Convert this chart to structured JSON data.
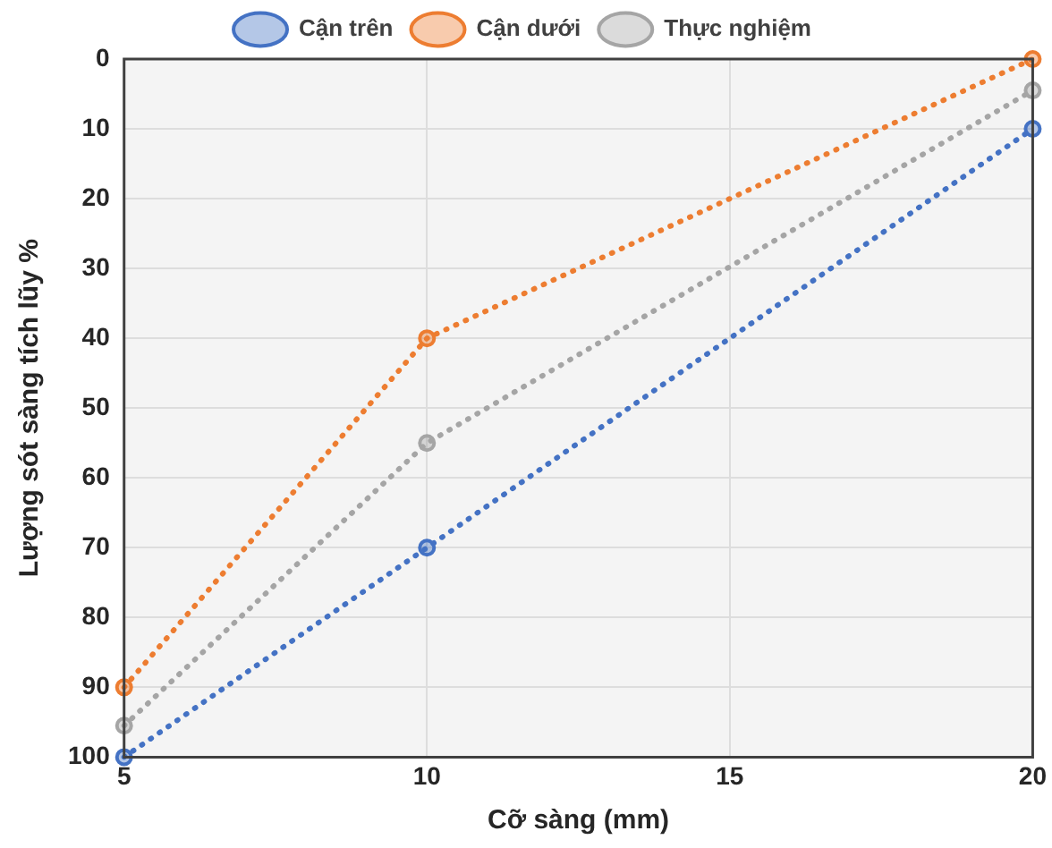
{
  "chart_data": {
    "type": "line",
    "xlabel": "Cỡ sàng (mm)",
    "ylabel": "Lượng sót sàng tích lũy %",
    "x": [
      5,
      10,
      20
    ],
    "series": [
      {
        "name": "Cận trên",
        "color": "#4472c4",
        "values": [
          100,
          70,
          10
        ]
      },
      {
        "name": "Cận dưới",
        "color": "#ed7d31",
        "values": [
          90,
          40,
          0
        ]
      },
      {
        "name": "Thực nghiệm",
        "color": "#a5a5a5",
        "values": [
          95.5,
          55,
          4.5
        ]
      }
    ],
    "xlim": [
      5,
      20
    ],
    "xticks": [
      5,
      10,
      15,
      20
    ],
    "ylim": [
      100,
      0
    ],
    "yticks": [
      0,
      10,
      20,
      30,
      40,
      50,
      60,
      70,
      80,
      90,
      100
    ],
    "grid": true,
    "legend": "top",
    "marker": "circle",
    "line_style": "dotted"
  }
}
